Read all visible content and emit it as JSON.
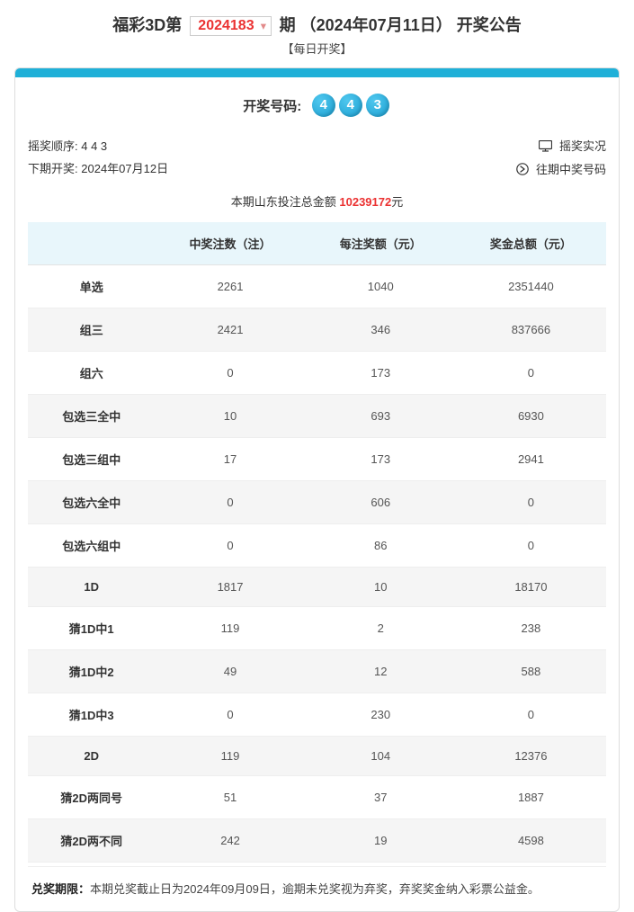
{
  "header": {
    "title_prefix": "福彩3D第",
    "issue": "2024183",
    "title_suffix_1": "期",
    "date": "（2024年07月11日）",
    "title_suffix_2": "开奖公告",
    "subtitle": "【每日开奖】"
  },
  "winning": {
    "label": "开奖号码:",
    "numbers": [
      "4",
      "4",
      "3"
    ]
  },
  "meta": {
    "order_label": "摇奖顺序:",
    "order_value": "4  4  3",
    "next_label": "下期开奖:",
    "next_value": "2024年07月12日",
    "link_live": "摇奖实况",
    "link_history": "往期中奖号码"
  },
  "total_bet": {
    "prefix": "本期山东投注总金额",
    "amount": "10239172",
    "suffix": "元"
  },
  "table": {
    "headers": [
      "",
      "中奖注数（注）",
      "每注奖额（元）",
      "奖金总额（元）"
    ],
    "rows": [
      {
        "label": "单选",
        "count": "2261",
        "per": "1040",
        "total": "2351440"
      },
      {
        "label": "组三",
        "count": "2421",
        "per": "346",
        "total": "837666"
      },
      {
        "label": "组六",
        "count": "0",
        "per": "173",
        "total": "0"
      },
      {
        "label": "包选三全中",
        "count": "10",
        "per": "693",
        "total": "6930"
      },
      {
        "label": "包选三组中",
        "count": "17",
        "per": "173",
        "total": "2941"
      },
      {
        "label": "包选六全中",
        "count": "0",
        "per": "606",
        "total": "0"
      },
      {
        "label": "包选六组中",
        "count": "0",
        "per": "86",
        "total": "0"
      },
      {
        "label": "1D",
        "count": "1817",
        "per": "10",
        "total": "18170"
      },
      {
        "label": "猜1D中1",
        "count": "119",
        "per": "2",
        "total": "238"
      },
      {
        "label": "猜1D中2",
        "count": "49",
        "per": "12",
        "total": "588"
      },
      {
        "label": "猜1D中3",
        "count": "0",
        "per": "230",
        "total": "0"
      },
      {
        "label": "2D",
        "count": "119",
        "per": "104",
        "total": "12376"
      },
      {
        "label": "猜2D两同号",
        "count": "51",
        "per": "37",
        "total": "1887"
      },
      {
        "label": "猜2D两不同",
        "count": "242",
        "per": "19",
        "total": "4598"
      }
    ]
  },
  "footer": {
    "label": "兑奖期限：",
    "text": "本期兑奖截止日为2024年09月09日，逾期未兑奖视为弃奖，弃奖奖金纳入彩票公益金。"
  },
  "colors": {
    "accent": "#1fb0d8",
    "red": "#eb3232"
  }
}
